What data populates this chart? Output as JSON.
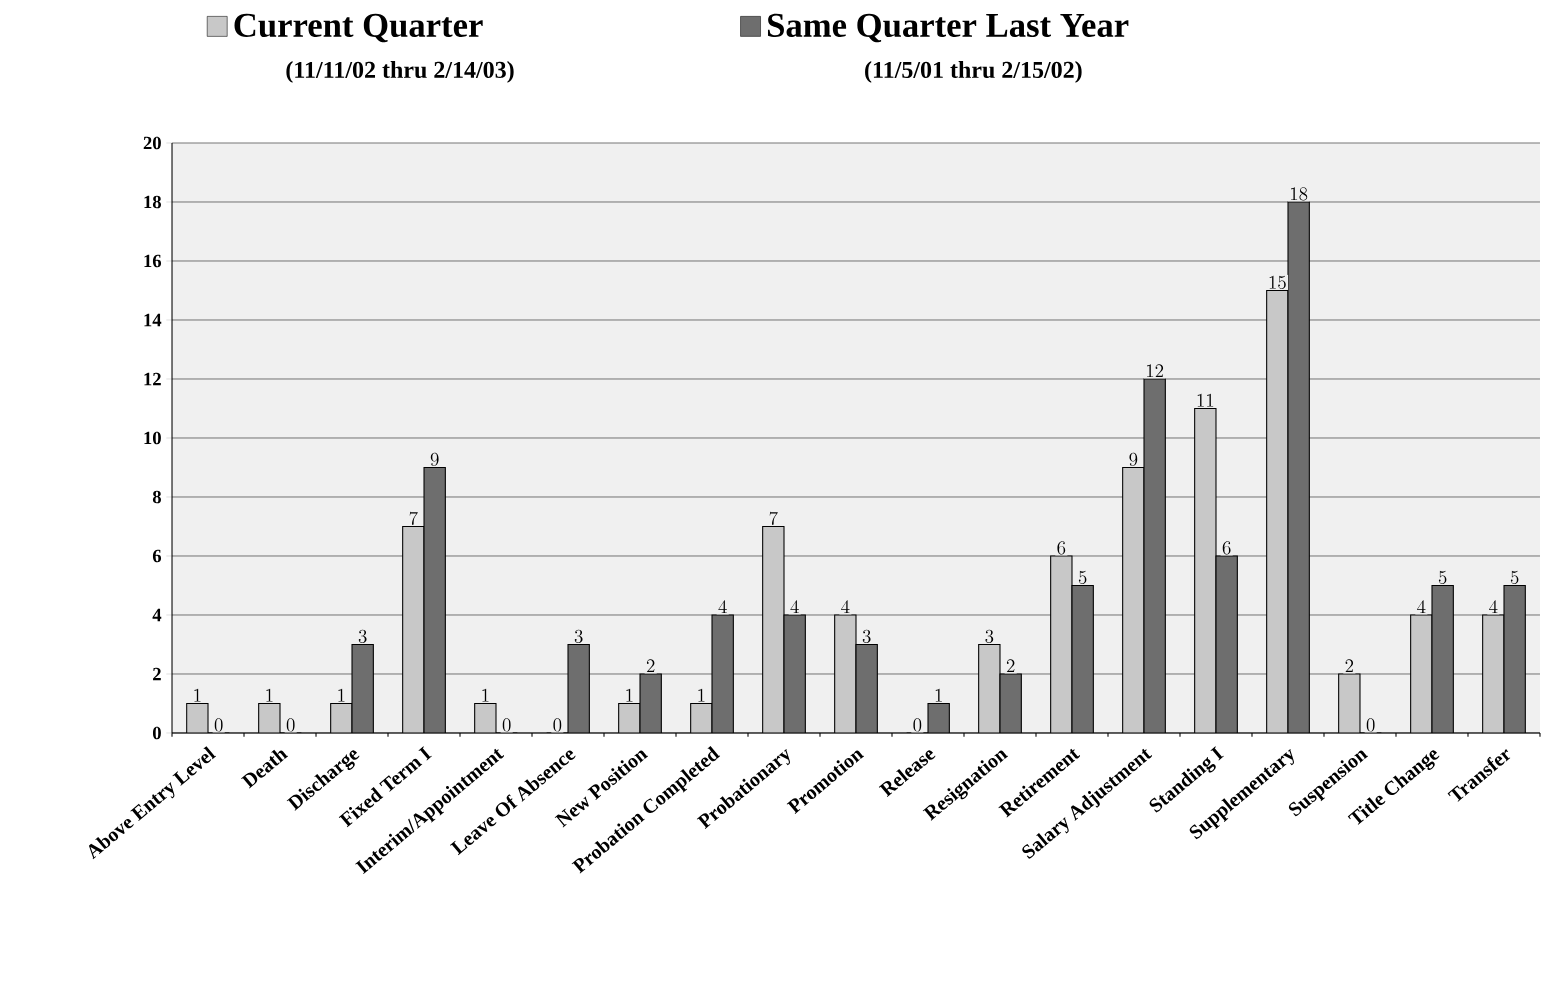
{
  "chart_data": {
    "type": "bar",
    "categories": [
      "Above Entry Level",
      "Death",
      "Discharge",
      "Fixed Term I",
      "Interim/Appointment",
      "Leave Of Absence",
      "New Position",
      "Probation Completed",
      "Probationary",
      "Promotion",
      "Release",
      "Resignation",
      "Retirement",
      "Salary Adjustment",
      "Standing I",
      "Supplementary",
      "Suspension",
      "Title Change",
      "Transfer"
    ],
    "series": [
      {
        "name": "Current Quarter",
        "color": "#c8c8c8",
        "values": [
          1,
          1,
          1,
          7,
          1,
          0,
          1,
          1,
          7,
          4,
          0,
          3,
          6,
          9,
          11,
          15,
          2,
          4,
          4
        ]
      },
      {
        "name": "Same Quarter Last Year",
        "color": "#6e6e6e",
        "values": [
          0,
          0,
          3,
          9,
          0,
          3,
          2,
          4,
          4,
          3,
          1,
          2,
          5,
          12,
          6,
          18,
          0,
          5,
          5
        ]
      }
    ],
    "annotations": [
      "(11/11/02 thru 2/14/03)",
      "(11/5/01 thru 2/15/02)"
    ],
    "ylim": [
      0,
      20
    ],
    "yticks": [
      0,
      2,
      4,
      6,
      8,
      10,
      12,
      14,
      16,
      18,
      20
    ],
    "grid": "y",
    "legend": "top",
    "data_labels": true
  }
}
